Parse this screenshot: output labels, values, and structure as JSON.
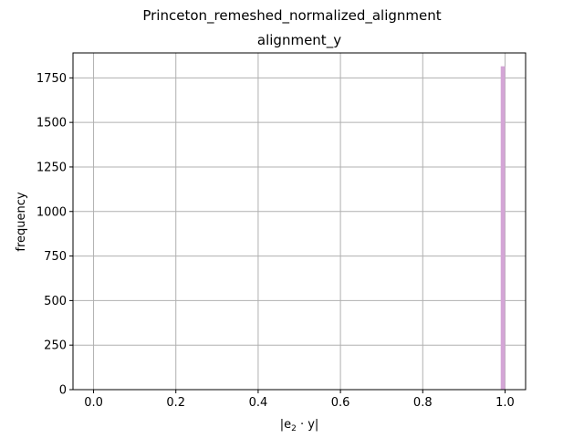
{
  "chart_data": {
    "type": "bar",
    "suptitle": "Princeton_remeshed_normalized_alignment",
    "title": "alignment_y",
    "xlabel_prefix": "|e",
    "xlabel_sub": "2",
    "xlabel_suffix": " · y|",
    "ylabel": "frequency",
    "xlim": [
      -0.05,
      1.05
    ],
    "ylim": [
      0,
      1890
    ],
    "xticks": [
      0.0,
      0.2,
      0.4,
      0.6,
      0.8,
      1.0
    ],
    "xtick_labels": [
      "0.0",
      "0.2",
      "0.4",
      "0.6",
      "0.8",
      "1.0"
    ],
    "yticks": [
      0,
      250,
      500,
      750,
      1000,
      1250,
      1500,
      1750
    ],
    "ytick_labels": [
      "0",
      "250",
      "500",
      "750",
      "1000",
      "1250",
      "1500",
      "1750"
    ],
    "grid": true,
    "bar_color": "#d4a5d6",
    "bins": [
      {
        "x0": 0.9895,
        "x1": 1.0,
        "value": 1815
      }
    ]
  }
}
